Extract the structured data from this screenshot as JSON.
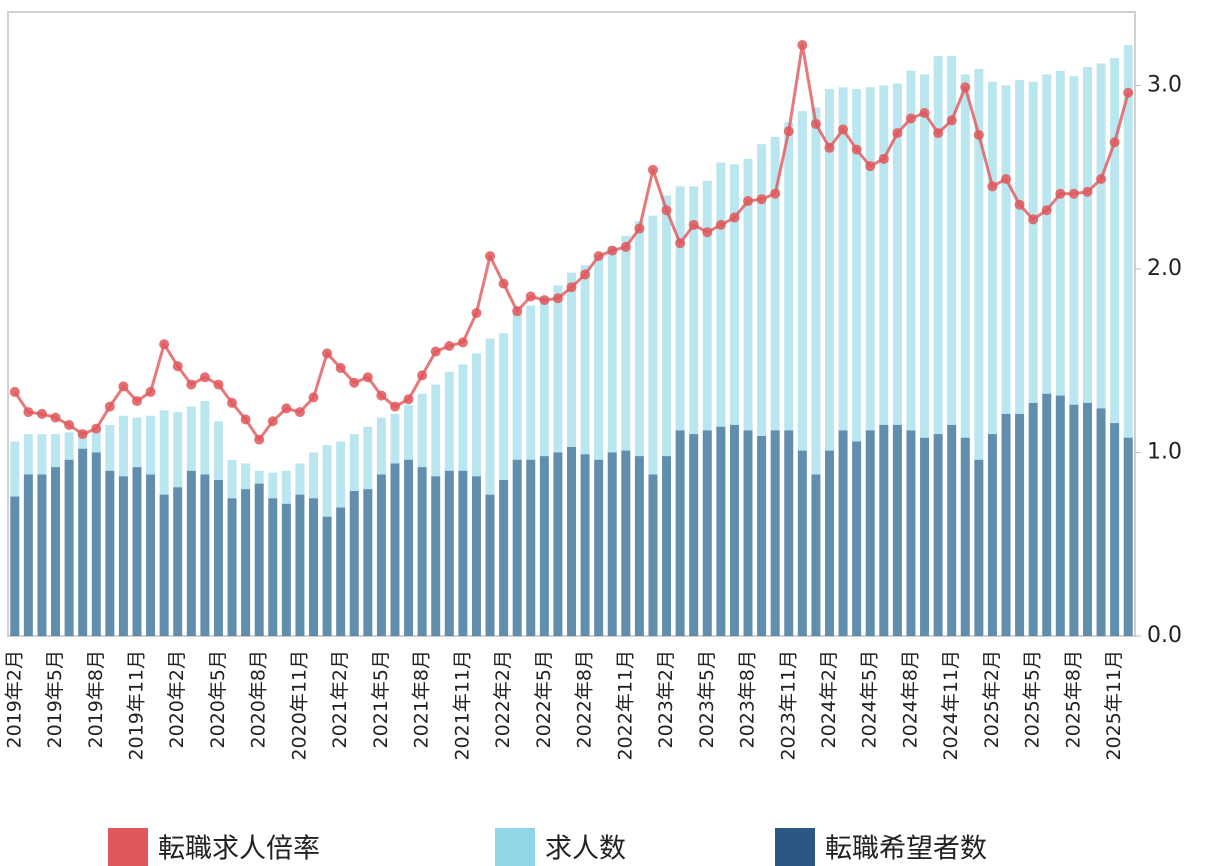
{
  "chart_data": {
    "type": "bar",
    "categories": [
      "2019年2月",
      null,
      null,
      "2019年5月",
      null,
      null,
      "2019年8月",
      null,
      null,
      "2019年11月",
      null,
      null,
      "2020年2月",
      null,
      null,
      "2020年5月",
      null,
      null,
      "2020年8月",
      null,
      null,
      "2020年11月",
      null,
      null,
      "2021年2月",
      null,
      null,
      "2021年5月",
      null,
      null,
      "2021年8月",
      null,
      null,
      "2021年11月",
      null,
      null,
      "2022年2月",
      null,
      null,
      "2022年5月",
      null,
      null,
      "2022年8月",
      null,
      null,
      "2022年11月",
      null,
      null,
      "2023年2月",
      null,
      null,
      "2023年5月",
      null,
      null,
      "2023年8月",
      null,
      null,
      "2023年11月",
      null,
      null,
      "2024年2月",
      null,
      null,
      "2024年5月",
      null,
      null,
      "2024年8月",
      null,
      null,
      "2024年11月",
      null,
      null,
      "2025年2月",
      null,
      null,
      "2025年5月",
      null,
      null,
      "2025年8月",
      null,
      null,
      "2025年11月",
      null
    ],
    "series": [
      {
        "name": "転職求人倍率",
        "type": "line",
        "color": "#e0575b",
        "values": [
          1.33,
          1.22,
          1.21,
          1.19,
          1.15,
          1.1,
          1.13,
          1.25,
          1.36,
          1.28,
          1.33,
          1.59,
          1.47,
          1.37,
          1.41,
          1.37,
          1.27,
          1.18,
          1.07,
          1.17,
          1.24,
          1.22,
          1.3,
          1.54,
          1.46,
          1.38,
          1.41,
          1.31,
          1.25,
          1.29,
          1.42,
          1.55,
          1.58,
          1.6,
          1.76,
          2.07,
          1.92,
          1.77,
          1.85,
          1.83,
          1.84,
          1.9,
          1.97,
          2.07,
          2.1,
          2.12,
          2.22,
          2.54,
          2.32,
          2.14,
          2.24,
          2.2,
          2.24,
          2.28,
          2.37,
          2.38,
          2.41,
          2.75,
          3.22,
          2.79,
          2.66,
          2.76,
          2.65,
          2.56,
          2.6,
          2.74,
          2.82,
          2.85,
          2.74,
          2.81,
          2.99,
          2.73,
          2.45,
          2.49,
          2.35,
          2.27,
          2.32,
          2.41,
          2.41,
          2.42,
          2.49,
          2.69,
          2.96
        ]
      },
      {
        "name": "求人数",
        "type": "bar",
        "color": "#8fd6e6",
        "values": [
          1.06,
          1.1,
          1.1,
          1.1,
          1.11,
          1.11,
          1.12,
          1.15,
          1.2,
          1.19,
          1.2,
          1.23,
          1.22,
          1.25,
          1.28,
          1.17,
          0.96,
          0.94,
          0.9,
          0.89,
          0.9,
          0.94,
          1.0,
          1.04,
          1.06,
          1.1,
          1.14,
          1.19,
          1.21,
          1.26,
          1.32,
          1.37,
          1.44,
          1.48,
          1.54,
          1.62,
          1.65,
          1.76,
          1.8,
          1.85,
          1.91,
          1.98,
          2.02,
          2.07,
          2.12,
          2.18,
          2.26,
          2.29,
          2.4,
          2.45,
          2.45,
          2.48,
          2.58,
          2.57,
          2.6,
          2.68,
          2.72,
          2.8,
          2.86,
          2.88,
          2.98,
          2.99,
          2.98,
          2.99,
          3.0,
          3.01,
          3.08,
          3.06,
          3.16,
          3.16,
          3.06,
          3.09,
          3.02,
          3.0,
          3.03,
          3.02,
          3.06,
          3.08,
          3.05,
          3.1,
          3.12,
          3.15,
          3.22
        ]
      },
      {
        "name": "転職希望者数",
        "type": "bar",
        "color": "#2c5785",
        "values": [
          0.76,
          0.88,
          0.88,
          0.92,
          0.96,
          1.02,
          1.0,
          0.9,
          0.87,
          0.92,
          0.88,
          0.77,
          0.81,
          0.9,
          0.88,
          0.85,
          0.75,
          0.8,
          0.83,
          0.75,
          0.72,
          0.77,
          0.75,
          0.65,
          0.7,
          0.79,
          0.8,
          0.88,
          0.94,
          0.96,
          0.92,
          0.87,
          0.9,
          0.9,
          0.87,
          0.77,
          0.85,
          0.96,
          0.96,
          0.98,
          1.0,
          1.03,
          0.99,
          0.96,
          1.0,
          1.01,
          0.98,
          0.88,
          0.98,
          1.12,
          1.1,
          1.12,
          1.14,
          1.15,
          1.12,
          1.09,
          1.12,
          1.12,
          1.01,
          0.88,
          1.01,
          1.12,
          1.06,
          1.12,
          1.15,
          1.15,
          1.12,
          1.08,
          1.1,
          1.15,
          1.08,
          0.96,
          1.1,
          1.21,
          1.21,
          1.27,
          1.32,
          1.31,
          1.26,
          1.27,
          1.24,
          1.16,
          1.08
        ]
      }
    ],
    "ylim": [
      0,
      3.4
    ],
    "yticks": [
      {
        "value": 0,
        "label": "0.0"
      },
      {
        "value": 1,
        "label": "1.0"
      },
      {
        "value": 2,
        "label": "2.0"
      },
      {
        "value": 3,
        "label": "3.0"
      }
    ],
    "yaxis_position": "right",
    "grid": false,
    "legend": "bottom"
  }
}
